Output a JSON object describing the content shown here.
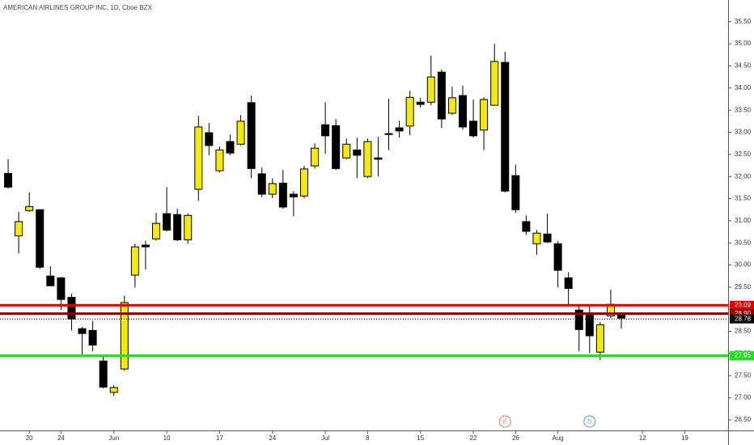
{
  "chart_data": {
    "type": "candlestick",
    "title": "AMERICAN AIRLINES GROUP INC, 1D, Cboe BZX",
    "up_color": "#f5eb00",
    "down_color": "#000000",
    "border_color": "#000000",
    "open": [
      32.07,
      30.66,
      31.23,
      31.25,
      29.75,
      29.71,
      29.27,
      28.56,
      28.52,
      27.83,
      27.12,
      27.65,
      29.77,
      30.45,
      30.59,
      31.16,
      31.14,
      30.57,
      31.71,
      32.99,
      32.13,
      32.79,
      32.73,
      33.67,
      32.06,
      31.6,
      31.85,
      31.6,
      31.56,
      32.24,
      33.17,
      33.15,
      32.42,
      32.6,
      32.0,
      32.42,
      32.97,
      33.1,
      33.14,
      33.68,
      33.68,
      34.36,
      33.43,
      33.83,
      33.25,
      33.05,
      33.61,
      34.58,
      32.02,
      30.98,
      30.48,
      30.7,
      30.48,
      29.71,
      28.98,
      28.87,
      28.03,
      28.85,
      28.87
    ],
    "high": [
      32.39,
      31.2,
      31.64,
      31.25,
      29.97,
      29.73,
      29.35,
      28.6,
      28.74,
      27.94,
      27.28,
      29.31,
      30.48,
      30.55,
      31.18,
      31.76,
      31.27,
      31.16,
      33.37,
      33.21,
      32.68,
      32.95,
      33.39,
      33.83,
      32.2,
      31.96,
      32.15,
      31.67,
      32.24,
      32.75,
      33.68,
      33.3,
      32.86,
      32.88,
      32.86,
      32.9,
      33.76,
      33.26,
      33.94,
      33.78,
      34.73,
      34.42,
      34.03,
      34.05,
      33.74,
      33.79,
      35.0,
      34.82,
      32.27,
      31.12,
      30.79,
      31.16,
      30.54,
      29.84,
      29.09,
      29.07,
      28.71,
      29.44,
      28.93
    ],
    "low": [
      31.73,
      30.26,
      31.2,
      29.91,
      29.53,
      28.98,
      28.52,
      27.96,
      28.05,
      27.21,
      27.04,
      27.61,
      29.49,
      29.9,
      30.55,
      30.76,
      30.54,
      30.48,
      31.45,
      32.48,
      32.09,
      32.48,
      32.7,
      31.96,
      31.53,
      31.51,
      31.27,
      31.1,
      31.51,
      32.18,
      32.51,
      32.15,
      32.39,
      31.96,
      31.96,
      32.0,
      32.6,
      32.88,
      32.93,
      33.56,
      33.61,
      33.1,
      33.39,
      33.06,
      32.88,
      32.6,
      33.61,
      31.64,
      31.18,
      30.68,
      30.23,
      30.5,
      29.49,
      29.09,
      28.05,
      28.01,
      27.85,
      28.8,
      28.56
    ],
    "close": [
      31.76,
      30.98,
      31.32,
      29.95,
      29.53,
      29.22,
      28.78,
      28.45,
      28.19,
      27.24,
      27.23,
      29.15,
      30.41,
      30.41,
      30.94,
      30.79,
      30.57,
      31.12,
      33.12,
      32.7,
      32.6,
      32.53,
      33.25,
      32.18,
      31.6,
      31.84,
      31.31,
      31.54,
      32.17,
      32.64,
      32.92,
      32.18,
      32.73,
      32.48,
      32.79,
      32.39,
      32.95,
      33.03,
      33.79,
      33.63,
      34.25,
      33.3,
      33.78,
      33.12,
      32.92,
      33.74,
      34.6,
      31.67,
      31.25,
      30.76,
      30.72,
      30.52,
      29.88,
      29.47,
      28.54,
      28.4,
      28.65,
      29.11,
      28.8
    ],
    "xlim": [
      -0.77,
      68.1
    ],
    "xticks": [
      {
        "value": 2,
        "label": "20"
      },
      {
        "value": 5,
        "label": "24"
      },
      {
        "value": 10,
        "label": "Jun"
      },
      {
        "value": 15,
        "label": "10"
      },
      {
        "value": 20,
        "label": "17"
      },
      {
        "value": 25,
        "label": "24"
      },
      {
        "value": 30,
        "label": "Jul"
      },
      {
        "value": 34,
        "label": "8"
      },
      {
        "value": 39,
        "label": "15"
      },
      {
        "value": 44,
        "label": "22"
      },
      {
        "value": 48,
        "label": "26"
      },
      {
        "value": 52,
        "label": "Aug"
      },
      {
        "value": 60,
        "label": "12"
      },
      {
        "value": 64,
        "label": "19"
      }
    ],
    "ylim": [
      26.26,
      35.99
    ],
    "yticks": [
      {
        "value": 26.5,
        "label": "26.50"
      },
      {
        "value": 27,
        "label": "27.00"
      },
      {
        "value": 27.5,
        "label": "27.50"
      },
      {
        "value": 28,
        "label": "28.00"
      },
      {
        "value": 28.5,
        "label": "28.50"
      },
      {
        "value": 29,
        "label": "29.00"
      },
      {
        "value": 29.5,
        "label": "29.50"
      },
      {
        "value": 30,
        "label": "30.00"
      },
      {
        "value": 30.5,
        "label": "30.50"
      },
      {
        "value": 31,
        "label": "31.00"
      },
      {
        "value": 31.5,
        "label": "31.50"
      },
      {
        "value": 32,
        "label": "32.00"
      },
      {
        "value": 32.5,
        "label": "32.50"
      },
      {
        "value": 33,
        "label": "33.00"
      },
      {
        "value": 33.5,
        "label": "33.50"
      },
      {
        "value": 34,
        "label": "34.00"
      },
      {
        "value": 34.5,
        "label": "34.50"
      },
      {
        "value": 35,
        "label": "35.00"
      },
      {
        "value": 35.5,
        "label": "35.50"
      }
    ],
    "hlines": [
      {
        "value": 29.09,
        "label": "29.09",
        "color": "#e00000",
        "style": "solid"
      },
      {
        "value": 28.9,
        "label": "28.90",
        "color": "#8b0000",
        "style": "solid"
      },
      {
        "value": 28.78,
        "label": "28.78",
        "color": "#000000",
        "style": "dotted"
      },
      {
        "value": 27.95,
        "label": "27.95",
        "color": "#22dd22",
        "style": "solid"
      }
    ],
    "events": [
      {
        "x": 47,
        "label": "E",
        "color": "#e57373"
      },
      {
        "x": 55,
        "label": "D",
        "color": "#3da5d9"
      }
    ]
  }
}
